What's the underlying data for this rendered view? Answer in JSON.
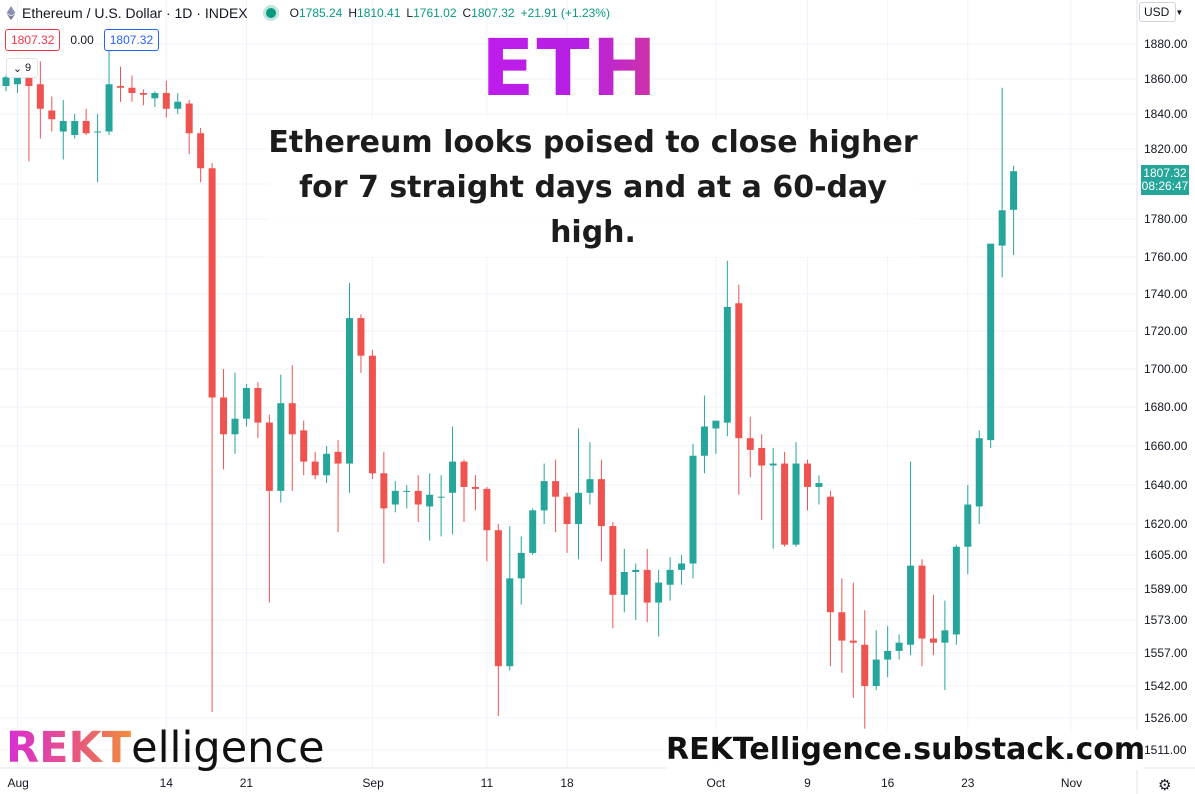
{
  "header": {
    "symbol_title": "Ethereum / U.S. Dollar · 1D · INDEX",
    "ohlc": [
      {
        "key": "O",
        "value": "1785.24"
      },
      {
        "key": "H",
        "value": "1810.41"
      },
      {
        "key": "L",
        "value": "1761.02"
      },
      {
        "key": "C",
        "value": "1807.32"
      },
      {
        "key": "",
        "value": "+21.91 (+1.23%)"
      }
    ],
    "sell_price": "1807.32",
    "spread": "0.00",
    "buy_price": "1807.32",
    "indicator_count": "9",
    "currency": "USD"
  },
  "overlay": {
    "title": "ETH",
    "subtitle_line1": "Ethereum looks poised to close higher",
    "subtitle_line2": "for 7 straight days and at a 60-day high.",
    "brand_rekt": "REKT",
    "brand_rest": "elligence",
    "brand_url": "REKTelligence.substack.com"
  },
  "price_axis": {
    "last_price": "1807.32",
    "countdown": "08:26:47"
  },
  "colors": {
    "up": "#26a69a",
    "down": "#ef5350",
    "grid": "#f0f3fa",
    "accent_purple": "#c41aef"
  },
  "chart_data": {
    "type": "candlestick",
    "title": "Ethereum / U.S. Dollar · 1D · INDEX",
    "xlabel": "",
    "ylabel": "",
    "ylim": [
      1505,
      1890
    ],
    "grid": true,
    "y_ticks": [
      1880,
      1860,
      1840,
      1820,
      1800,
      1780,
      1760,
      1740,
      1720,
      1700,
      1680,
      1660,
      1640,
      1620,
      1605,
      1589,
      1573,
      1557,
      1542,
      1526,
      1511
    ],
    "y_tick_labels": [
      "1880.00",
      "1860.00",
      "1840.00",
      "1820.00",
      "1800.00",
      "1780.00",
      "1760.00",
      "1740.00",
      "1720.00",
      "1700.00",
      "1680.00",
      "1660.00",
      "1640.00",
      "1620.00",
      "1605.00",
      "1589.00",
      "1573.00",
      "1557.00",
      "1542.00",
      "1526.00",
      "1511.00"
    ],
    "x_ticks": [
      {
        "label": "Aug",
        "index": 1
      },
      {
        "label": "14",
        "index": 14
      },
      {
        "label": "21",
        "index": 21
      },
      {
        "label": "Sep",
        "index": 32
      },
      {
        "label": "11",
        "index": 42
      },
      {
        "label": "18",
        "index": 49
      },
      {
        "label": "Oct",
        "index": 62
      },
      {
        "label": "9",
        "index": 70
      },
      {
        "label": "16",
        "index": 77
      },
      {
        "label": "23",
        "index": 84
      },
      {
        "label": "Nov",
        "index": 93
      }
    ],
    "candles": [
      {
        "o": 1856,
        "h": 1862,
        "l": 1853,
        "c": 1861
      },
      {
        "o": 1857,
        "h": 1870,
        "l": 1852,
        "c": 1865
      },
      {
        "o": 1868,
        "h": 1870,
        "l": 1813,
        "c": 1856
      },
      {
        "o": 1857,
        "h": 1870,
        "l": 1826,
        "c": 1843
      },
      {
        "o": 1842,
        "h": 1850,
        "l": 1830,
        "c": 1837
      },
      {
        "o": 1830,
        "h": 1848,
        "l": 1814,
        "c": 1836
      },
      {
        "o": 1828,
        "h": 1840,
        "l": 1826,
        "c": 1836
      },
      {
        "o": 1836,
        "h": 1843,
        "l": 1828,
        "c": 1829
      },
      {
        "o": 1830,
        "h": 1840,
        "l": 1801,
        "c": 1830
      },
      {
        "o": 1830,
        "h": 1876,
        "l": 1828,
        "c": 1857
      },
      {
        "o": 1856,
        "h": 1867,
        "l": 1847,
        "c": 1855
      },
      {
        "o": 1855,
        "h": 1862,
        "l": 1847,
        "c": 1852
      },
      {
        "o": 1852,
        "h": 1854,
        "l": 1845,
        "c": 1851
      },
      {
        "o": 1849,
        "h": 1853,
        "l": 1844,
        "c": 1852
      },
      {
        "o": 1852,
        "h": 1859,
        "l": 1838,
        "c": 1843
      },
      {
        "o": 1843,
        "h": 1852,
        "l": 1840,
        "c": 1847
      },
      {
        "o": 1846,
        "h": 1848,
        "l": 1817,
        "c": 1829
      },
      {
        "o": 1829,
        "h": 1832,
        "l": 1801,
        "c": 1809
      },
      {
        "o": 1809,
        "h": 1812,
        "l": 1529,
        "c": 1685
      },
      {
        "o": 1685,
        "h": 1700,
        "l": 1648,
        "c": 1666
      },
      {
        "o": 1666,
        "h": 1698,
        "l": 1656,
        "c": 1674
      },
      {
        "o": 1674,
        "h": 1692,
        "l": 1670,
        "c": 1690
      },
      {
        "o": 1690,
        "h": 1693,
        "l": 1664,
        "c": 1672
      },
      {
        "o": 1672,
        "h": 1676,
        "l": 1582,
        "c": 1637
      },
      {
        "o": 1637,
        "h": 1697,
        "l": 1631,
        "c": 1682
      },
      {
        "o": 1682,
        "h": 1702,
        "l": 1637,
        "c": 1666
      },
      {
        "o": 1668,
        "h": 1673,
        "l": 1645,
        "c": 1652
      },
      {
        "o": 1652,
        "h": 1657,
        "l": 1643,
        "c": 1645
      },
      {
        "o": 1645,
        "h": 1660,
        "l": 1641,
        "c": 1656
      },
      {
        "o": 1657,
        "h": 1663,
        "l": 1616,
        "c": 1651
      },
      {
        "o": 1651,
        "h": 1746,
        "l": 1636,
        "c": 1727
      },
      {
        "o": 1727,
        "h": 1729,
        "l": 1698,
        "c": 1707
      },
      {
        "o": 1707,
        "h": 1710,
        "l": 1643,
        "c": 1646
      },
      {
        "o": 1646,
        "h": 1657,
        "l": 1601,
        "c": 1628
      },
      {
        "o": 1630,
        "h": 1642,
        "l": 1626,
        "c": 1637
      },
      {
        "o": 1637,
        "h": 1640,
        "l": 1628,
        "c": 1637
      },
      {
        "o": 1637,
        "h": 1645,
        "l": 1621,
        "c": 1630
      },
      {
        "o": 1629,
        "h": 1646,
        "l": 1612,
        "c": 1635
      },
      {
        "o": 1634,
        "h": 1645,
        "l": 1614,
        "c": 1634
      },
      {
        "o": 1636,
        "h": 1670,
        "l": 1615,
        "c": 1652
      },
      {
        "o": 1652,
        "h": 1653,
        "l": 1621,
        "c": 1639
      },
      {
        "o": 1639,
        "h": 1645,
        "l": 1627,
        "c": 1638
      },
      {
        "o": 1638,
        "h": 1639,
        "l": 1602,
        "c": 1617
      },
      {
        "o": 1617,
        "h": 1620,
        "l": 1527,
        "c": 1551
      },
      {
        "o": 1551,
        "h": 1619,
        "l": 1549,
        "c": 1594
      },
      {
        "o": 1594,
        "h": 1614,
        "l": 1581,
        "c": 1606
      },
      {
        "o": 1606,
        "h": 1628,
        "l": 1605,
        "c": 1627
      },
      {
        "o": 1627,
        "h": 1651,
        "l": 1620,
        "c": 1642
      },
      {
        "o": 1642,
        "h": 1653,
        "l": 1616,
        "c": 1634
      },
      {
        "o": 1634,
        "h": 1636,
        "l": 1606,
        "c": 1620
      },
      {
        "o": 1620,
        "h": 1669,
        "l": 1603,
        "c": 1636
      },
      {
        "o": 1636,
        "h": 1662,
        "l": 1630,
        "c": 1643
      },
      {
        "o": 1643,
        "h": 1653,
        "l": 1602,
        "c": 1619
      },
      {
        "o": 1619,
        "h": 1621,
        "l": 1569,
        "c": 1586
      },
      {
        "o": 1586,
        "h": 1608,
        "l": 1577,
        "c": 1597
      },
      {
        "o": 1597,
        "h": 1601,
        "l": 1573,
        "c": 1598
      },
      {
        "o": 1598,
        "h": 1608,
        "l": 1572,
        "c": 1582
      },
      {
        "o": 1582,
        "h": 1598,
        "l": 1565,
        "c": 1592
      },
      {
        "o": 1591,
        "h": 1604,
        "l": 1583,
        "c": 1598
      },
      {
        "o": 1598,
        "h": 1605,
        "l": 1591,
        "c": 1601
      },
      {
        "o": 1601,
        "h": 1661,
        "l": 1594,
        "c": 1655
      },
      {
        "o": 1655,
        "h": 1686,
        "l": 1646,
        "c": 1670
      },
      {
        "o": 1669,
        "h": 1670,
        "l": 1656,
        "c": 1673
      },
      {
        "o": 1672,
        "h": 1758,
        "l": 1665,
        "c": 1733
      },
      {
        "o": 1735,
        "h": 1745,
        "l": 1635,
        "c": 1664
      },
      {
        "o": 1664,
        "h": 1675,
        "l": 1644,
        "c": 1658
      },
      {
        "o": 1659,
        "h": 1666,
        "l": 1622,
        "c": 1650
      },
      {
        "o": 1650,
        "h": 1659,
        "l": 1608,
        "c": 1651
      },
      {
        "o": 1651,
        "h": 1657,
        "l": 1609,
        "c": 1610
      },
      {
        "o": 1610,
        "h": 1662,
        "l": 1609,
        "c": 1651
      },
      {
        "o": 1651,
        "h": 1653,
        "l": 1627,
        "c": 1639
      },
      {
        "o": 1639,
        "h": 1645,
        "l": 1630,
        "c": 1641
      },
      {
        "o": 1634,
        "h": 1637,
        "l": 1551,
        "c": 1577
      },
      {
        "o": 1577,
        "h": 1594,
        "l": 1548,
        "c": 1563
      },
      {
        "o": 1563,
        "h": 1592,
        "l": 1536,
        "c": 1562
      },
      {
        "o": 1561,
        "h": 1578,
        "l": 1521,
        "c": 1542
      },
      {
        "o": 1542,
        "h": 1568,
        "l": 1540,
        "c": 1554
      },
      {
        "o": 1554,
        "h": 1570,
        "l": 1546,
        "c": 1558
      },
      {
        "o": 1558,
        "h": 1566,
        "l": 1554,
        "c": 1562
      },
      {
        "o": 1561,
        "h": 1652,
        "l": 1556,
        "c": 1600
      },
      {
        "o": 1600,
        "h": 1603,
        "l": 1551,
        "c": 1564
      },
      {
        "o": 1564,
        "h": 1586,
        "l": 1556,
        "c": 1562
      },
      {
        "o": 1562,
        "h": 1583,
        "l": 1540,
        "c": 1568
      },
      {
        "o": 1566,
        "h": 1610,
        "l": 1561,
        "c": 1609
      },
      {
        "o": 1609,
        "h": 1640,
        "l": 1596,
        "c": 1630
      },
      {
        "o": 1629,
        "h": 1668,
        "l": 1620,
        "c": 1664
      },
      {
        "o": 1663,
        "h": 1767,
        "l": 1659,
        "c": 1767
      },
      {
        "o": 1766,
        "h": 1855,
        "l": 1749,
        "c": 1785
      },
      {
        "o": 1785.24,
        "h": 1810.41,
        "l": 1761.02,
        "c": 1807.32
      }
    ]
  }
}
